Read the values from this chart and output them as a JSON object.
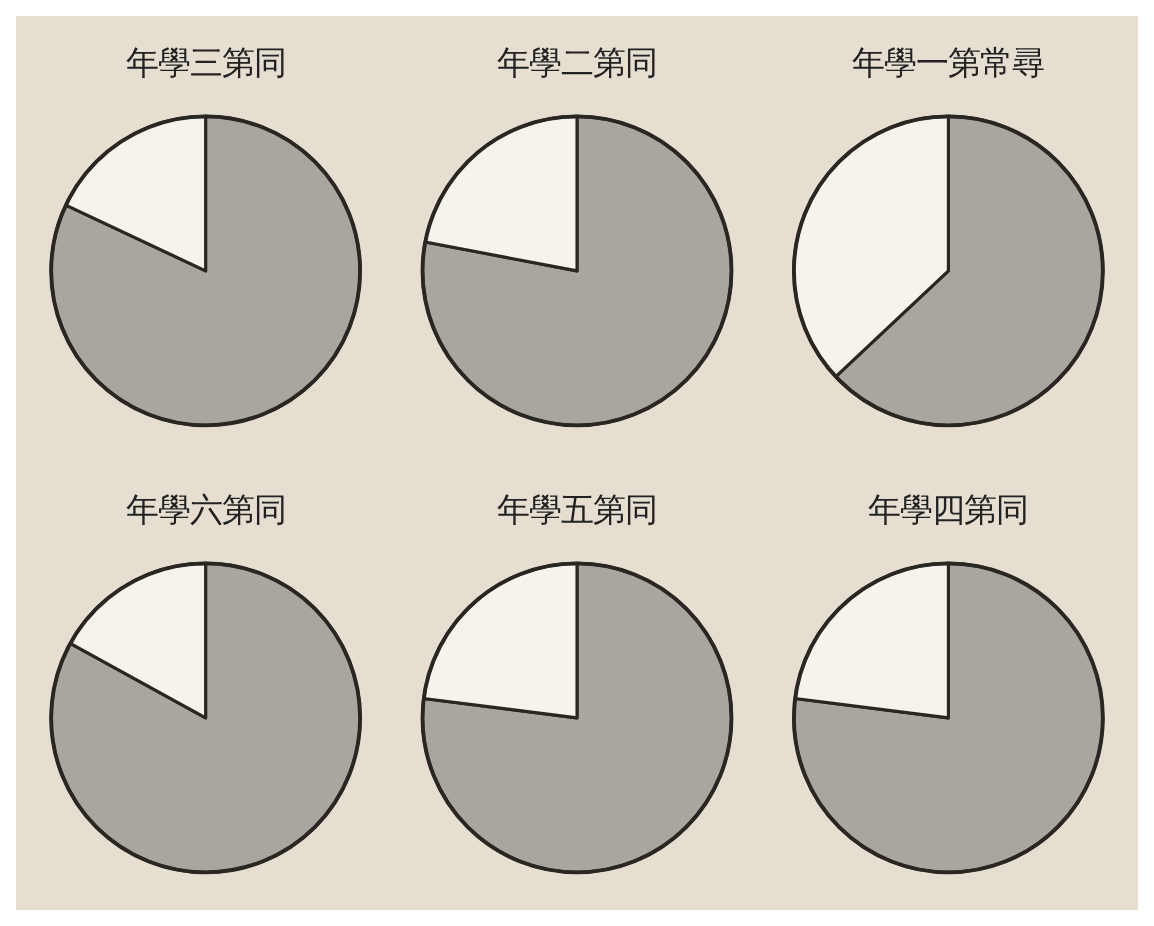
{
  "chart_data": [
    {
      "type": "pie",
      "title": "年學三第同",
      "categories": [
        null,
        null
      ],
      "values": [
        82,
        18
      ],
      "colors": [
        "#aaa69f",
        "#f6f3ec"
      ]
    },
    {
      "type": "pie",
      "title": "年學二第同",
      "categories": [
        null,
        null
      ],
      "values": [
        78,
        22
      ],
      "colors": [
        "#aaa69f",
        "#f6f3ec"
      ]
    },
    {
      "type": "pie",
      "title": "年學一第常尋",
      "categories": [
        null,
        null
      ],
      "values": [
        63,
        37
      ],
      "colors": [
        "#aaa69f",
        "#f6f3ec"
      ]
    },
    {
      "type": "pie",
      "title": "年學六第同",
      "categories": [
        null,
        null
      ],
      "values": [
        83,
        17
      ],
      "colors": [
        "#aaa69f",
        "#f6f3ec"
      ]
    },
    {
      "type": "pie",
      "title": "年學五第同",
      "categories": [
        null,
        null
      ],
      "values": [
        77,
        23
      ],
      "colors": [
        "#aaa69f",
        "#f6f3ec"
      ]
    },
    {
      "type": "pie",
      "title": "年學四第同",
      "categories": [
        null,
        null
      ],
      "values": [
        77,
        23
      ],
      "colors": [
        "#aaa69f",
        "#f6f3ec"
      ]
    }
  ]
}
